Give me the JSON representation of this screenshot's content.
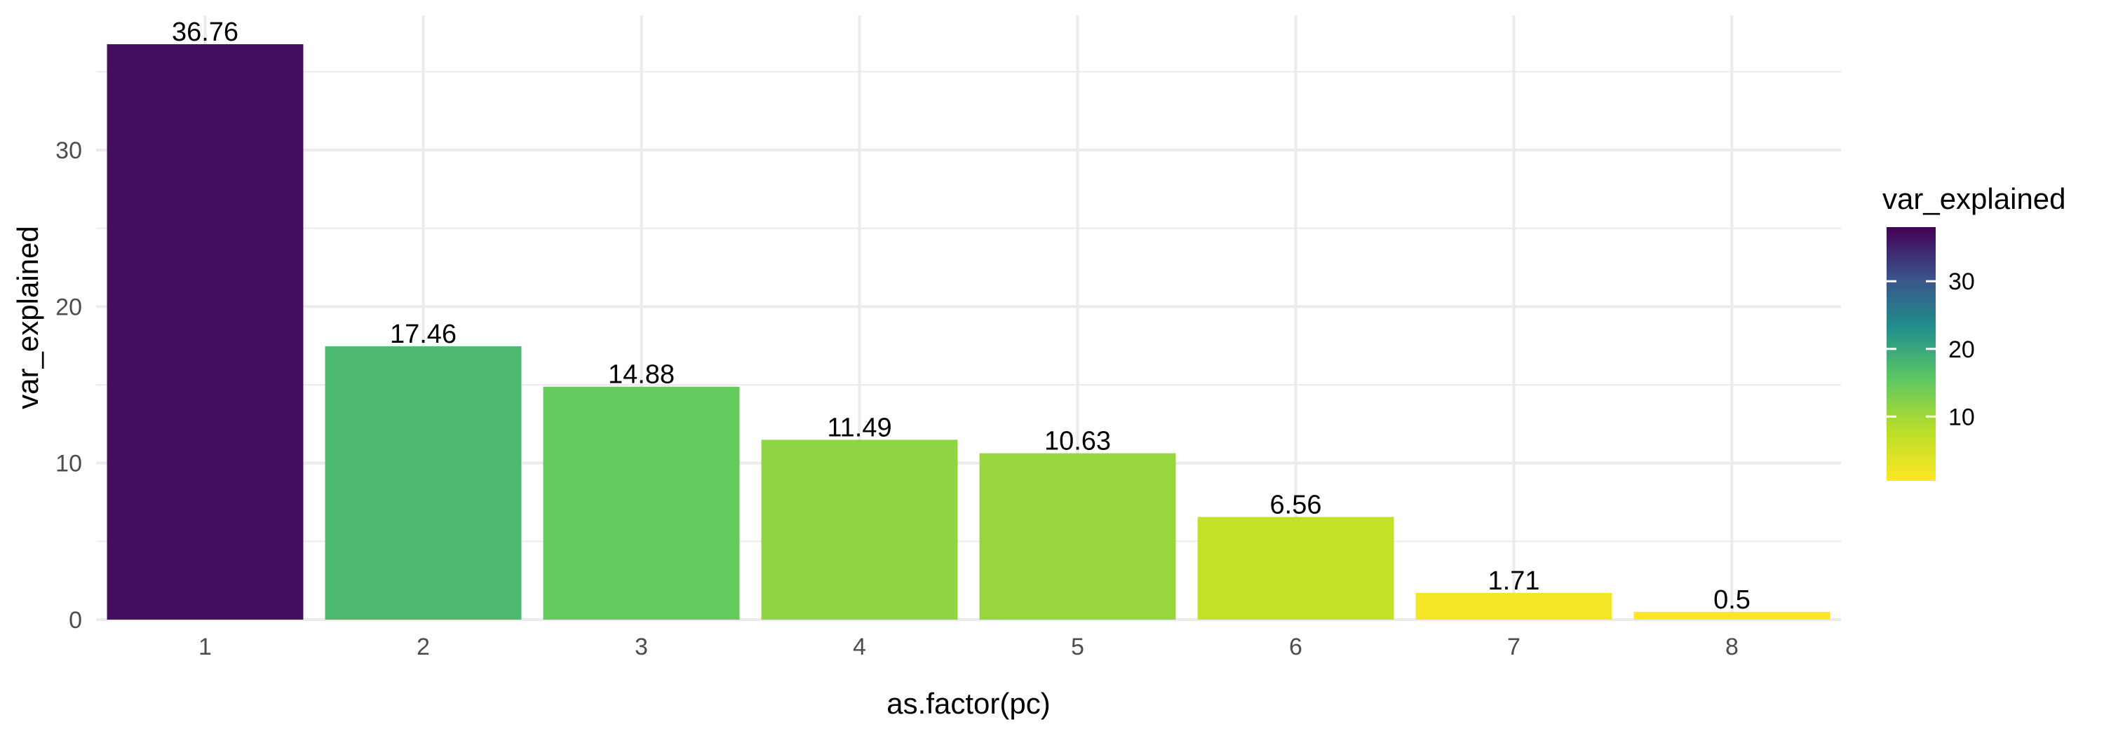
{
  "chart_data": {
    "type": "bar",
    "xlabel": "as.factor(pc)",
    "ylabel": "var_explained",
    "categories": [
      "1",
      "2",
      "3",
      "4",
      "5",
      "6",
      "7",
      "8"
    ],
    "values": [
      36.76,
      17.46,
      14.88,
      11.49,
      10.63,
      6.56,
      1.71,
      0.5
    ],
    "data_labels": [
      "36.76",
      "17.46",
      "14.88",
      "11.49",
      "10.63",
      "6.56",
      "1.71",
      "0.5"
    ],
    "ylim": [
      0,
      38.6
    ],
    "y_ticks": [
      0,
      10,
      20,
      30
    ],
    "y_tick_labels": [
      "0",
      "10",
      "20",
      "30"
    ],
    "grid": true,
    "background": "#ffffff",
    "grid_color": "#ebebeb",
    "legend": {
      "title": "var_explained",
      "placement": "right",
      "type": "colorbar",
      "range": [
        0.5,
        38
      ],
      "ticks": [
        10,
        20,
        30
      ],
      "tick_labels": [
        "10",
        "20",
        "30"
      ],
      "colors": [
        "#FDE725",
        "#B8DE29",
        "#5DC863",
        "#21908C",
        "#3B528B",
        "#440154"
      ]
    }
  }
}
